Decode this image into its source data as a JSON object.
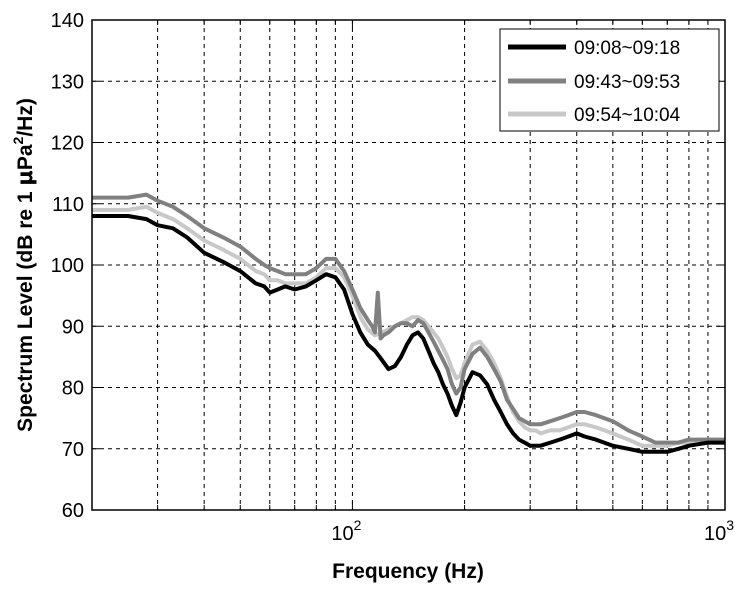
{
  "chart_data": {
    "type": "line",
    "xlabel": "Frequency (Hz)",
    "ylabel": "Spectrum Level (dB re 1 μPa²/Hz)",
    "ylabel_parts": {
      "main": "Spectrum Level (dB re 1 ",
      "mu": "μ",
      "pa": "Pa",
      "sup": "2",
      "tail": "/Hz)"
    },
    "xscale": "log",
    "xlim": [
      20,
      1000
    ],
    "ylim": [
      60,
      140
    ],
    "grid": true,
    "legend_position": "top-right",
    "yticks": [
      60,
      70,
      80,
      90,
      100,
      110,
      120,
      130,
      140
    ],
    "xticks": [
      {
        "value": 100,
        "base": "10",
        "exp": "2"
      },
      {
        "value": 1000,
        "base": "10",
        "exp": "3"
      }
    ],
    "series": [
      {
        "name": "09:08~09:18",
        "color": "#000000",
        "x": [
          20,
          22,
          25,
          28,
          30,
          33,
          36,
          40,
          45,
          50,
          55,
          58,
          60,
          63,
          66,
          70,
          75,
          80,
          85,
          90,
          95,
          100,
          105,
          110,
          115,
          120,
          125,
          130,
          135,
          140,
          145,
          150,
          155,
          160,
          165,
          170,
          175,
          180,
          185,
          190,
          195,
          200,
          210,
          220,
          230,
          240,
          250,
          260,
          270,
          280,
          290,
          300,
          320,
          340,
          360,
          380,
          400,
          420,
          450,
          500,
          550,
          600,
          650,
          700,
          750,
          800,
          900,
          1000
        ],
        "y": [
          108,
          108,
          108,
          107.5,
          106.5,
          106,
          104.5,
          102,
          100.5,
          99,
          97,
          96.5,
          95.5,
          96,
          96.5,
          96,
          96.5,
          97.5,
          98.5,
          98,
          96,
          92,
          89,
          87,
          86,
          84.5,
          83,
          83.5,
          85,
          87,
          88.5,
          89,
          88,
          86,
          84,
          82.5,
          80.5,
          79,
          77,
          75.5,
          77.5,
          80,
          82.5,
          82,
          80.5,
          78,
          76,
          74,
          72.5,
          71.5,
          71,
          70.5,
          70.5,
          71,
          71.5,
          72,
          72.5,
          72,
          71.5,
          70.5,
          70,
          69.5,
          69.5,
          69.5,
          70,
          70.5,
          71,
          71
        ]
      },
      {
        "name": "09:43~09:53",
        "color": "#808080",
        "x": [
          20,
          22,
          25,
          28,
          30,
          33,
          36,
          40,
          45,
          50,
          55,
          58,
          60,
          63,
          66,
          70,
          75,
          80,
          85,
          90,
          95,
          100,
          105,
          110,
          113,
          115,
          117,
          119,
          121,
          125,
          130,
          135,
          140,
          145,
          150,
          155,
          160,
          165,
          170,
          175,
          180,
          185,
          190,
          195,
          200,
          210,
          220,
          230,
          240,
          250,
          260,
          270,
          280,
          290,
          300,
          310,
          320,
          340,
          360,
          380,
          400,
          420,
          450,
          500,
          550,
          600,
          650,
          700,
          750,
          800,
          900,
          1000
        ],
        "y": [
          111,
          111,
          111,
          111.5,
          110.5,
          109.5,
          108,
          106,
          104.5,
          103,
          101,
          100,
          99.5,
          99,
          98.5,
          98.5,
          98.5,
          99.5,
          101,
          101,
          99,
          96,
          93,
          91,
          90,
          89,
          95.5,
          88,
          88.5,
          89,
          90,
          90.5,
          90.5,
          90,
          91,
          90.5,
          89,
          87.5,
          86,
          84.5,
          83,
          80.5,
          79,
          80,
          83,
          85.5,
          86.5,
          85,
          83,
          81,
          78,
          76.5,
          75,
          74.5,
          74,
          74,
          74,
          74.5,
          75,
          75.5,
          76,
          76,
          75.5,
          74.5,
          73,
          72,
          71,
          71,
          71,
          71.5,
          71.5,
          71.5
        ]
      },
      {
        "name": "09:54~10:04",
        "color": "#c8c8c8",
        "x": [
          20,
          22,
          25,
          28,
          30,
          33,
          36,
          40,
          45,
          50,
          55,
          58,
          60,
          63,
          66,
          70,
          75,
          80,
          85,
          90,
          95,
          100,
          105,
          110,
          115,
          120,
          125,
          130,
          135,
          140,
          145,
          150,
          155,
          160,
          165,
          170,
          175,
          180,
          185,
          190,
          195,
          200,
          210,
          220,
          230,
          240,
          250,
          260,
          270,
          280,
          290,
          300,
          310,
          320,
          340,
          360,
          380,
          400,
          420,
          450,
          500,
          550,
          600,
          650,
          700,
          750,
          800,
          900,
          1000
        ],
        "y": [
          109,
          109,
          109,
          109.5,
          108.5,
          107.5,
          106,
          104,
          102.5,
          101,
          99,
          98.5,
          97.5,
          97.5,
          97,
          97,
          97,
          98,
          99.5,
          99.5,
          98,
          95,
          91.5,
          89.5,
          88.5,
          89,
          89.5,
          90,
          90.5,
          91,
          91.5,
          91.5,
          91,
          90,
          89,
          88,
          86.5,
          85,
          83,
          81.5,
          82,
          84,
          87,
          87.5,
          86,
          84,
          81.5,
          78.5,
          76,
          74.5,
          73.5,
          73,
          73,
          72.5,
          73,
          73,
          73.5,
          74,
          74,
          73.5,
          72.5,
          71.5,
          70.5,
          70.5,
          70.5,
          71,
          71,
          71,
          71
        ]
      }
    ]
  }
}
